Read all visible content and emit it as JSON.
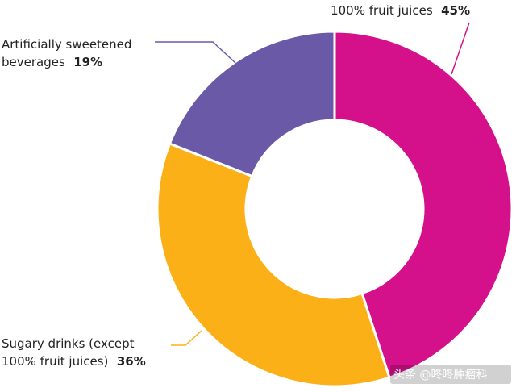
{
  "chart_data": {
    "type": "pie",
    "variant": "donut",
    "title": "",
    "categories": [
      "100% fruit juices",
      "Sugary drinks (except 100% fruit juices)",
      "Artificially sweetened beverages"
    ],
    "values": [
      45,
      36,
      19
    ],
    "unit": "%",
    "colors": [
      "#d4118a",
      "#fbb017",
      "#6a59a7"
    ],
    "labels": [
      {
        "lines": [
          "100% fruit juices"
        ],
        "value": "45%"
      },
      {
        "lines": [
          "Sugary drinks (except",
          "100% fruit juices)"
        ],
        "value": "36%"
      },
      {
        "lines": [
          "Artificially sweetened",
          "beverages"
        ],
        "value": "19%"
      }
    ],
    "leader_color": "#fbb017",
    "leader_color_purple": "#6a59a7",
    "leader_color_pink": "#d4118a"
  },
  "watermark": "头条 @咚咚肿瘤科"
}
